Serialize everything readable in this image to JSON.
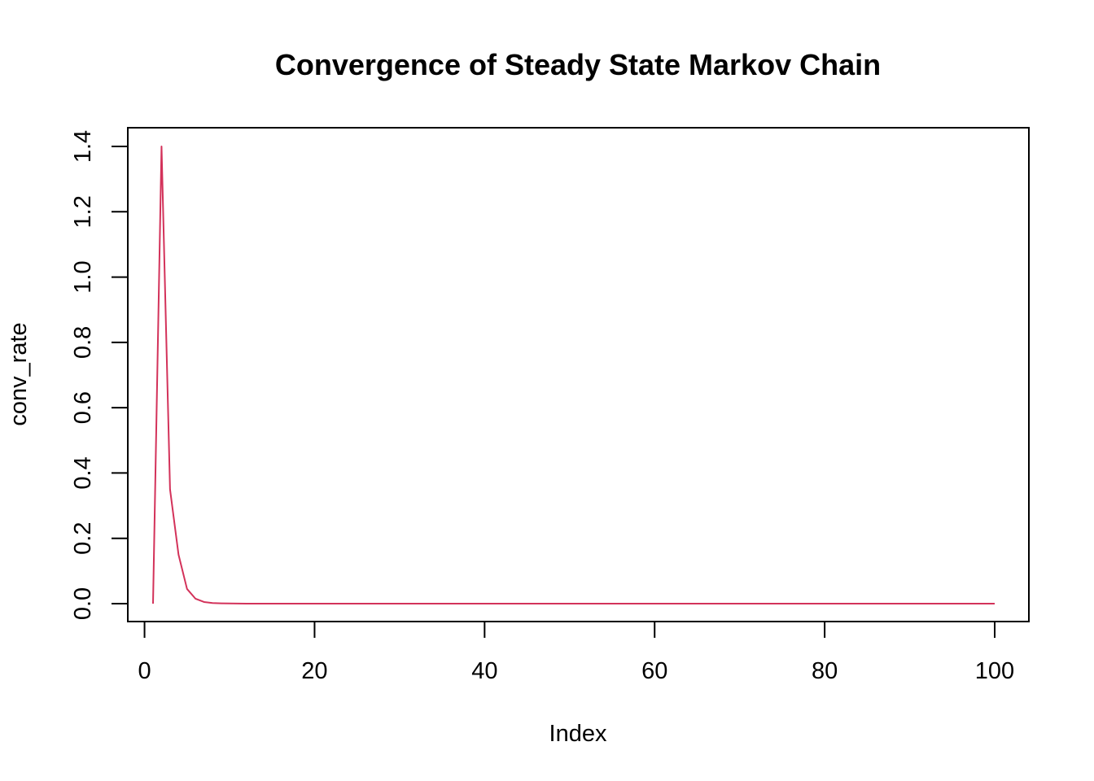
{
  "chart_data": {
    "type": "line",
    "title": "Convergence of Steady State Markov Chain",
    "xlabel": "Index",
    "ylabel": "conv_rate",
    "xlim": [
      1,
      100
    ],
    "ylim": [
      0,
      1.4
    ],
    "x_ticks": [
      0,
      20,
      40,
      60,
      80,
      100
    ],
    "y_ticks": [
      0.0,
      0.2,
      0.4,
      0.6,
      0.8,
      1.0,
      1.2,
      1.4
    ],
    "x_tick_labels": [
      "0",
      "20",
      "40",
      "60",
      "80",
      "100"
    ],
    "y_tick_labels": [
      "0.0",
      "0.2",
      "0.4",
      "0.6",
      "0.8",
      "1.0",
      "1.2",
      "1.4"
    ],
    "grid": false,
    "series": [
      {
        "color": "#D3325A",
        "x": [
          1,
          2,
          3,
          4,
          5,
          6,
          7,
          8,
          9,
          10,
          11,
          12,
          13,
          14,
          15,
          16,
          17,
          18,
          19,
          20,
          21,
          22,
          23,
          24,
          25,
          26,
          27,
          28,
          29,
          30,
          31,
          32,
          33,
          34,
          35,
          36,
          37,
          38,
          39,
          40,
          41,
          42,
          43,
          44,
          45,
          46,
          47,
          48,
          49,
          50,
          51,
          52,
          53,
          54,
          55,
          56,
          57,
          58,
          59,
          60,
          61,
          62,
          63,
          64,
          65,
          66,
          67,
          68,
          69,
          70,
          71,
          72,
          73,
          74,
          75,
          76,
          77,
          78,
          79,
          80,
          81,
          82,
          83,
          84,
          85,
          86,
          87,
          88,
          89,
          90,
          91,
          92,
          93,
          94,
          95,
          96,
          97,
          98,
          99,
          100
        ],
        "y": [
          0,
          1.4,
          0.35,
          0.15,
          0.045,
          0.015,
          0.005,
          0.002,
          0.001,
          0.0005,
          0.0002,
          0.0001,
          0,
          0,
          0,
          0,
          0,
          0,
          0,
          0,
          0,
          0,
          0,
          0,
          0,
          0,
          0,
          0,
          0,
          0,
          0,
          0,
          0,
          0,
          0,
          0,
          0,
          0,
          0,
          0,
          0,
          0,
          0,
          0,
          0,
          0,
          0,
          0,
          0,
          0,
          0,
          0,
          0,
          0,
          0,
          0,
          0,
          0,
          0,
          0,
          0,
          0,
          0,
          0,
          0,
          0,
          0,
          0,
          0,
          0,
          0,
          0,
          0,
          0,
          0,
          0,
          0,
          0,
          0,
          0,
          0,
          0,
          0,
          0,
          0,
          0,
          0,
          0,
          0,
          0,
          0,
          0,
          0,
          0,
          0,
          0,
          0,
          0,
          0,
          0
        ]
      }
    ]
  }
}
